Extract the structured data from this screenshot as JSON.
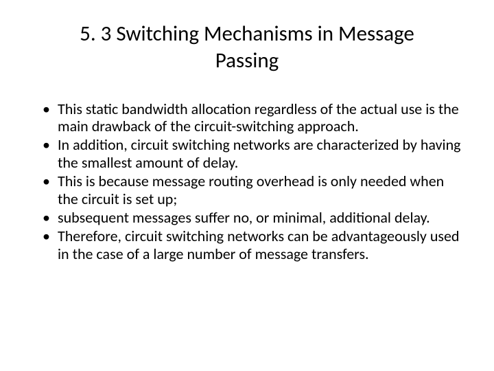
{
  "slide": {
    "title": "5. 3 Switching Mechanisms in Message Passing",
    "bullets": [
      "This static bandwidth allocation regardless of the actual use is the main drawback of the circuit-switching approach.",
      "In addition, circuit switching networks are characterized by having the smallest amount of delay.",
      " This is because message routing overhead is only needed when the circuit is set up;",
      "subsequent messages suffer no, or minimal, additional delay.",
      "Therefore, circuit switching networks can be advantageously used in the case of a large number of message transfers."
    ],
    "title_fontsize": 31,
    "bullet_fontsize": 22,
    "background_color": "#ffffff",
    "text_color": "#000000"
  }
}
